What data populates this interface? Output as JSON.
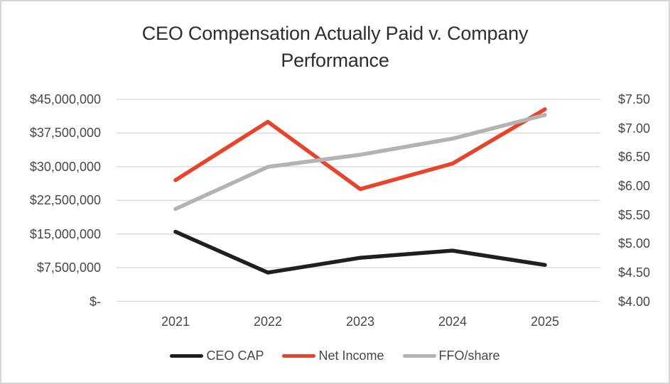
{
  "chart": {
    "title_line1": "CEO Compensation Actually Paid v. Company",
    "title_line2": "Performance"
  },
  "chart_data": {
    "type": "line",
    "title": "CEO Compensation Actually Paid v. Company Performance",
    "categories": [
      "2021",
      "2022",
      "2023",
      "2024",
      "2025"
    ],
    "series": [
      {
        "name": "CEO CAP",
        "axis": "left",
        "color": "#1f1f1f",
        "values": [
          15500000,
          6400000,
          9700000,
          11300000,
          8100000
        ]
      },
      {
        "name": "Net Income",
        "axis": "left",
        "color": "#e8432b",
        "values": [
          27000000,
          40000000,
          25000000,
          30700000,
          42800000
        ]
      },
      {
        "name": "FFO/share",
        "axis": "right",
        "color": "#b3b3b3",
        "values": [
          5.6,
          6.33,
          6.54,
          6.82,
          7.23
        ]
      }
    ],
    "left_axis": {
      "min": 0,
      "max": 45000000,
      "tick_labels": [
        "$-",
        "$7,500,000",
        "$15,000,000",
        "$22,500,000",
        "$30,000,000",
        "$37,500,000",
        "$45,000,000"
      ]
    },
    "right_axis": {
      "min": 4.0,
      "max": 7.5,
      "tick_labels": [
        "$4.00",
        "$4.50",
        "$5.00",
        "$5.50",
        "$6.00",
        "$6.50",
        "$7.00",
        "$7.50"
      ]
    },
    "grid": true,
    "gridline_color": "#d9d9d9",
    "legend_position": "bottom"
  }
}
